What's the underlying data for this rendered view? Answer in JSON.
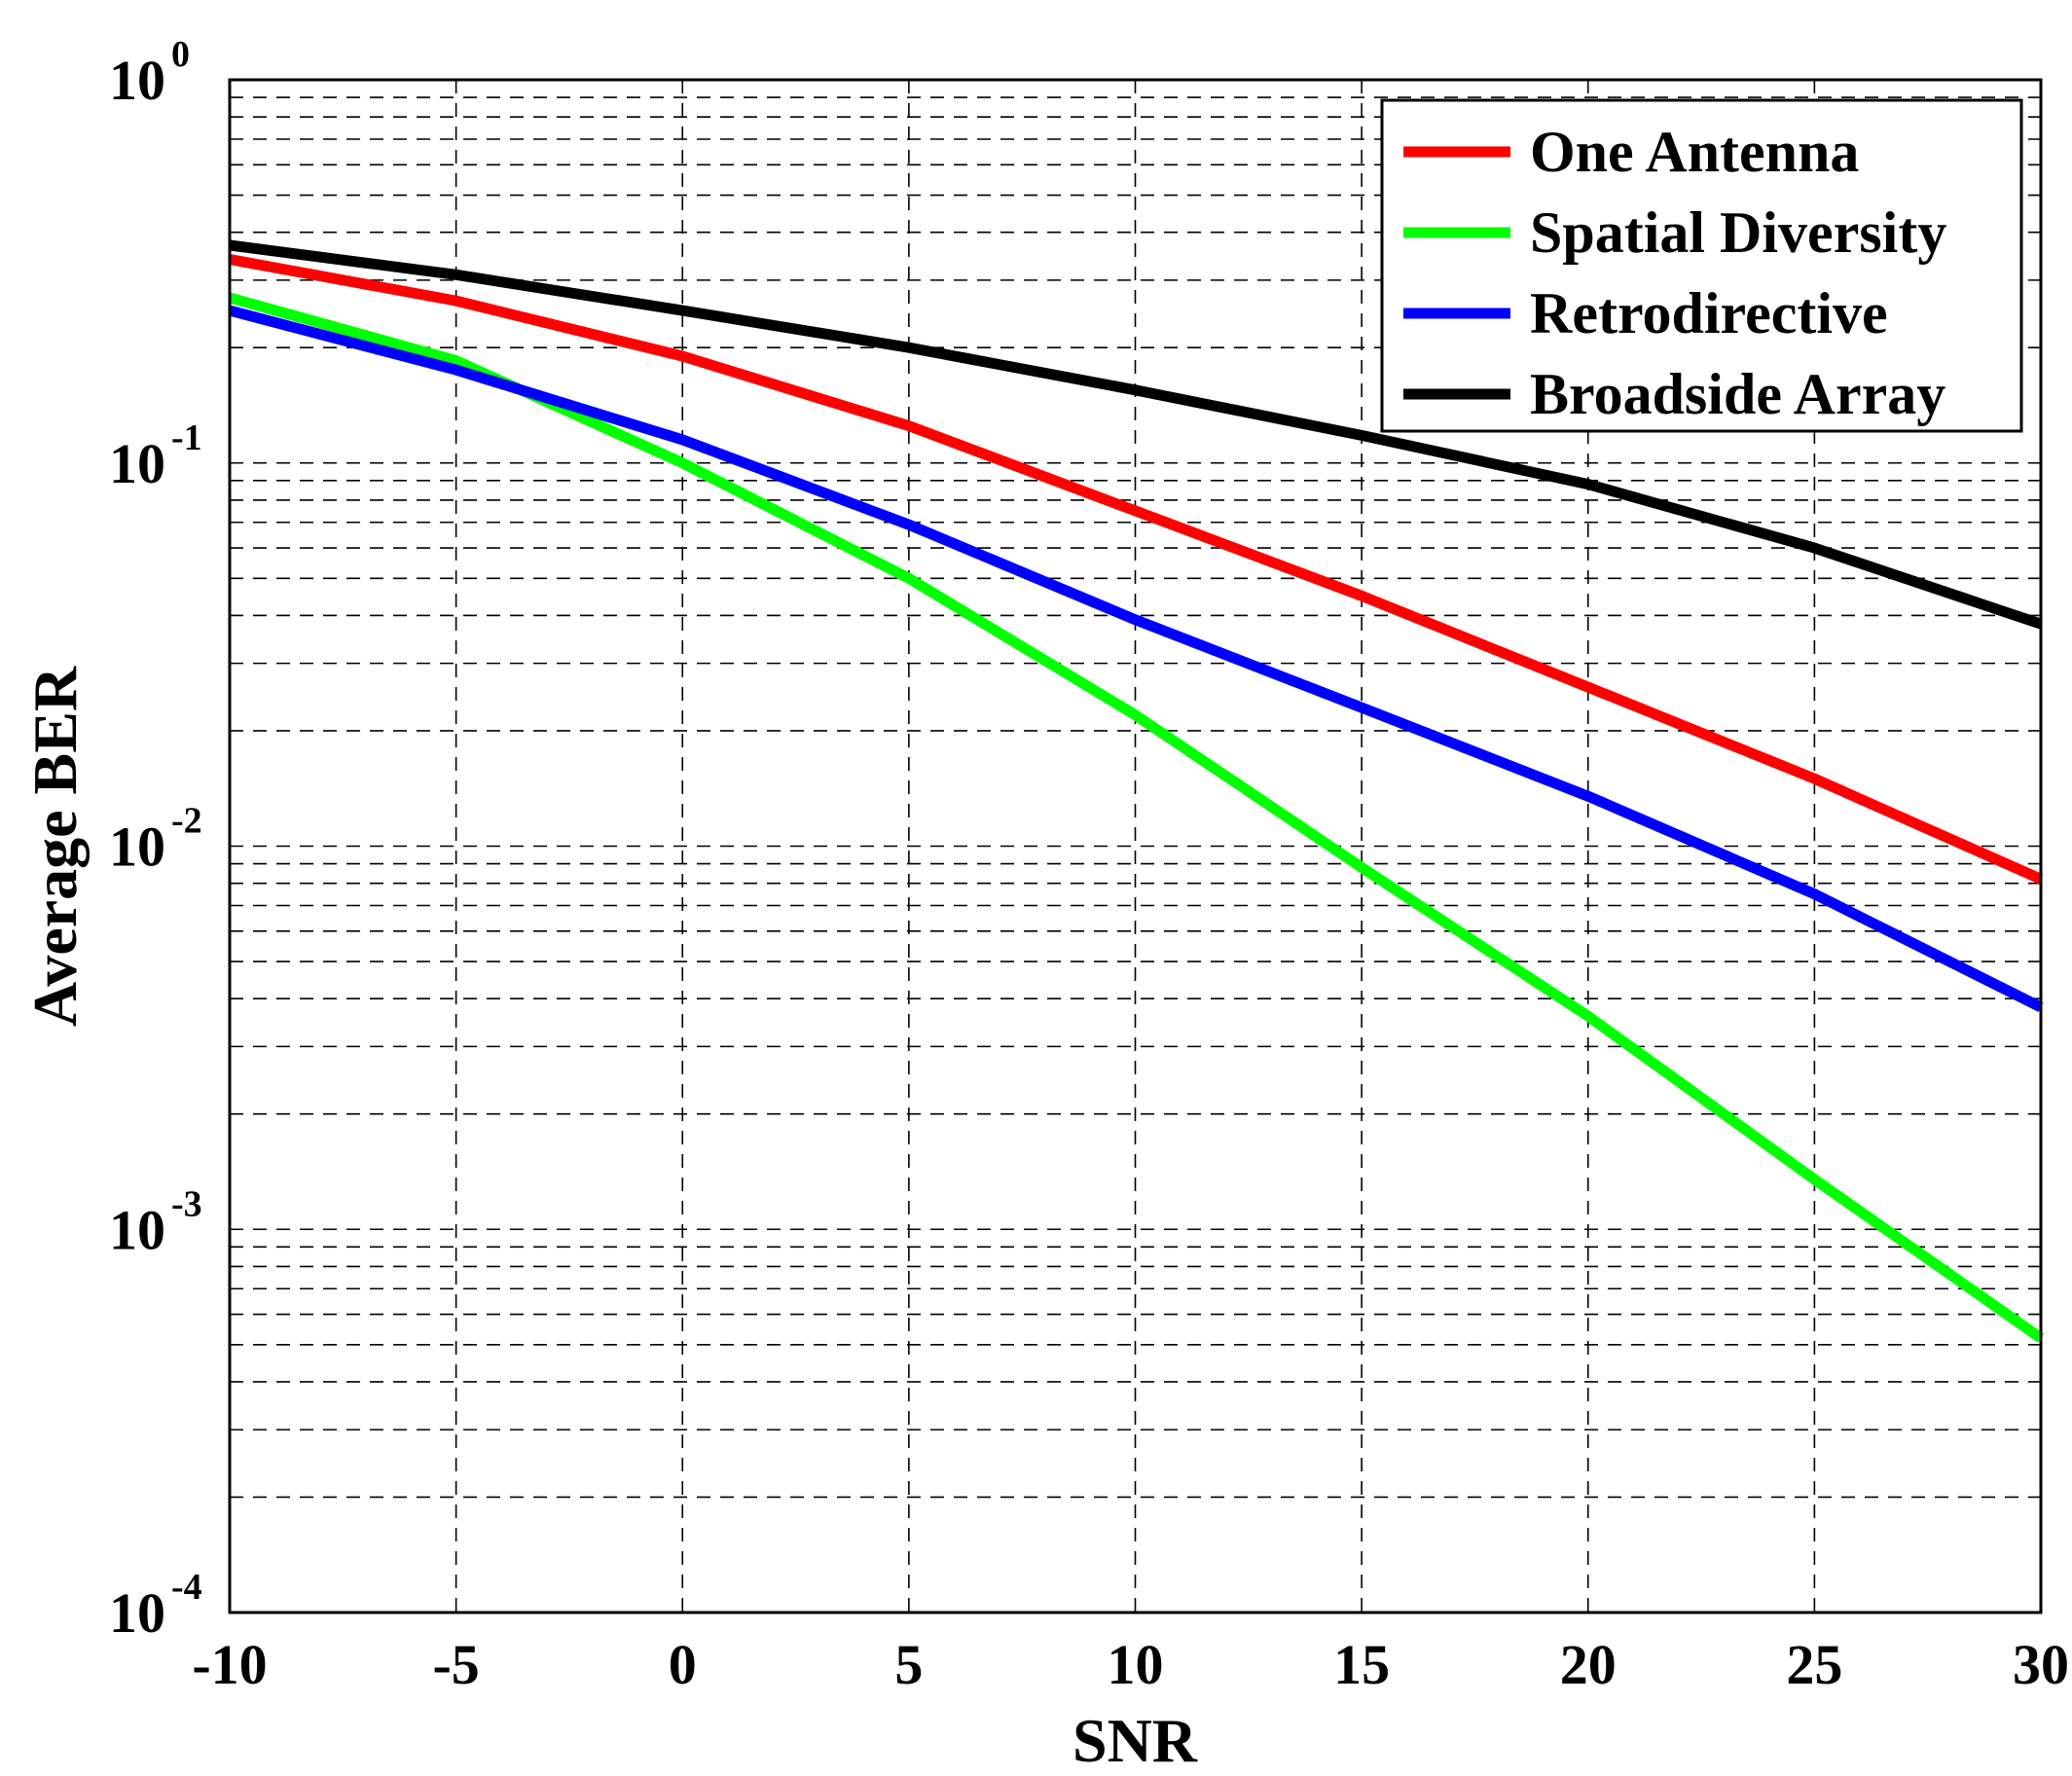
{
  "chart_data": {
    "type": "line",
    "title": "",
    "xlabel": "SNR",
    "ylabel": "Average BER",
    "xlim": [
      -10,
      30
    ],
    "ylim": [
      0.0001,
      1
    ],
    "yscale": "log",
    "grid": true,
    "legend_position": "top-right",
    "x_ticks": [
      "-10",
      "-5",
      "0",
      "5",
      "10",
      "15",
      "20",
      "25",
      "30"
    ],
    "y_ticks": [
      {
        "base": "10",
        "exp": "0"
      },
      {
        "base": "10",
        "exp": "-1"
      },
      {
        "base": "10",
        "exp": "-2"
      },
      {
        "base": "10",
        "exp": "-3"
      },
      {
        "base": "10",
        "exp": "-4"
      }
    ],
    "x": [
      -10,
      -5,
      0,
      5,
      10,
      15,
      20,
      25,
      30
    ],
    "series": [
      {
        "name": "One Antenna",
        "color": "#ff0000",
        "values": [
          0.34,
          0.265,
          0.19,
          0.125,
          0.075,
          0.045,
          0.026,
          0.015,
          0.0082
        ]
      },
      {
        "name": "Spatial Diversity",
        "color": "#00ff00",
        "values": [
          0.27,
          0.185,
          0.1,
          0.05,
          0.022,
          0.0088,
          0.0036,
          0.00135,
          0.00052
        ]
      },
      {
        "name": "Retrodirective",
        "color": "#0000ff",
        "values": [
          0.25,
          0.175,
          0.115,
          0.069,
          0.039,
          0.023,
          0.0135,
          0.0075,
          0.0038
        ]
      },
      {
        "name": "Broadside Array",
        "color": "#000000",
        "values": [
          0.37,
          0.31,
          0.25,
          0.2,
          0.155,
          0.118,
          0.088,
          0.06,
          0.038
        ]
      }
    ]
  }
}
